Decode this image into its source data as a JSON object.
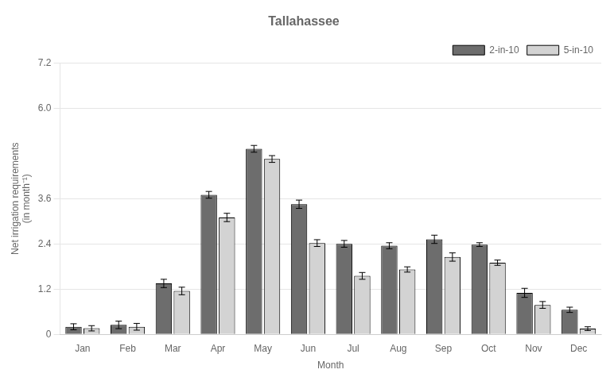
{
  "chart_data": {
    "type": "bar",
    "title": "Tallahassee",
    "xlabel": "Month",
    "ylabel": "Net irrigation requirements\n(in month⁻¹)",
    "categories": [
      "Jan",
      "Feb",
      "Mar",
      "Apr",
      "May",
      "Jun",
      "Jul",
      "Aug",
      "Sep",
      "Oct",
      "Nov",
      "Dec"
    ],
    "series": [
      {
        "name": "2-in-10",
        "color": "#6d6d6d",
        "values": [
          0.2,
          0.25,
          1.35,
          3.7,
          4.92,
          3.45,
          2.4,
          2.35,
          2.52,
          2.38,
          1.1,
          0.65
        ],
        "errors": [
          0.08,
          0.1,
          0.11,
          0.09,
          0.09,
          0.11,
          0.09,
          0.08,
          0.11,
          0.05,
          0.12,
          0.07
        ]
      },
      {
        "name": "5-in-10",
        "color": "#d3d3d3",
        "values": [
          0.16,
          0.2,
          1.15,
          3.1,
          4.65,
          2.42,
          1.55,
          1.72,
          2.05,
          1.9,
          0.78,
          0.15
        ],
        "errors": [
          0.07,
          0.09,
          0.1,
          0.11,
          0.09,
          0.09,
          0.09,
          0.07,
          0.11,
          0.07,
          0.09,
          0.05
        ]
      }
    ],
    "ylim": [
      0,
      7.2
    ],
    "yticks": [
      0,
      1.2,
      2.4,
      3.6,
      {
        "value": 6.0,
        "label": "6.0"
      },
      7.2
    ],
    "grid": true,
    "legend": "upper right"
  }
}
